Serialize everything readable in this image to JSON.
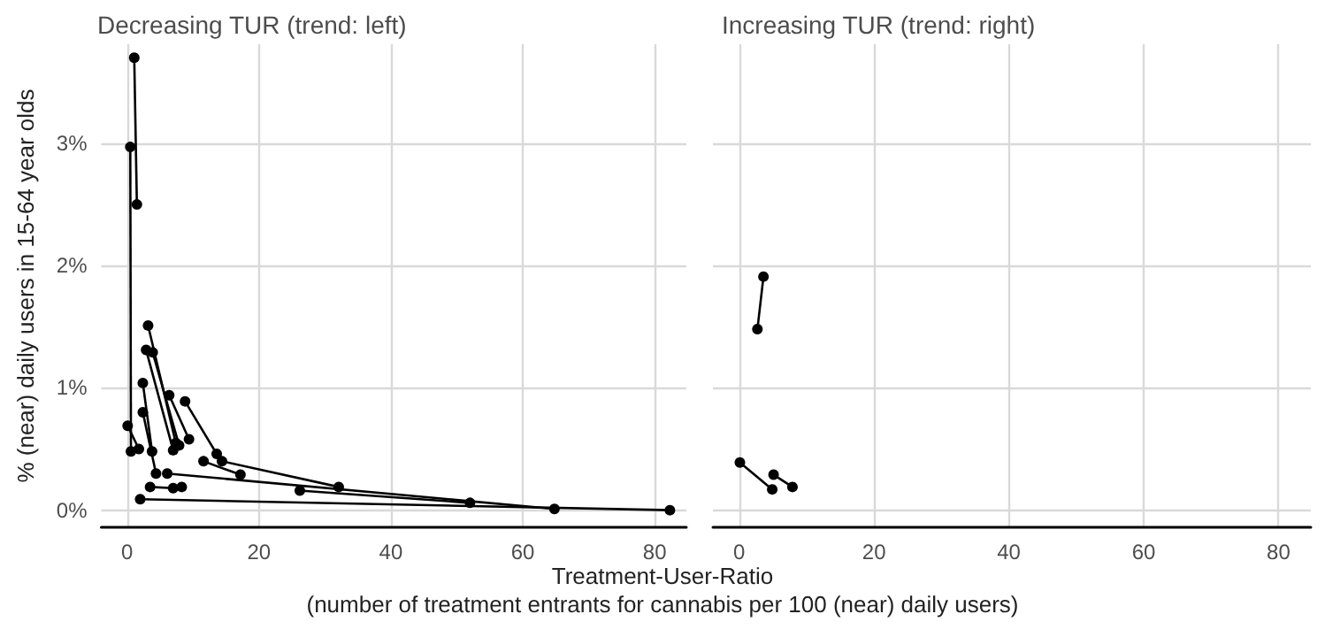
{
  "chart_data": [
    {
      "type": "line",
      "title": "Decreasing TUR (trend: left)",
      "xlabel": "Treatment-User-Ratio\n(number of treatment entrants for cannabis per 100 (near) daily users)",
      "ylabel": "% (near) daily users in 15-64 year olds",
      "color": "#000000",
      "marker": "circle",
      "grid": true,
      "xlim": [
        -3.9,
        84.8
      ],
      "xticks": [
        0,
        20,
        40,
        60,
        80
      ],
      "ylim": [
        -0.14,
        3.81
      ],
      "yticks": [
        {
          "value": 0,
          "label": "0%"
        },
        {
          "value": 1,
          "label": "1%"
        },
        {
          "value": 2,
          "label": "2%"
        },
        {
          "value": 3,
          "label": "3%"
        }
      ],
      "series": [
        {
          "x": [
            1.5,
            1.1
          ],
          "values": [
            2.5,
            3.7
          ]
        },
        {
          "x": [
            0.6,
            0.5
          ],
          "values": [
            0.48,
            2.97
          ]
        },
        {
          "x": [
            7.4,
            3.2
          ],
          "values": [
            0.55,
            1.51
          ]
        },
        {
          "x": [
            7.0,
            2.9
          ],
          "values": [
            0.49,
            1.31
          ]
        },
        {
          "x": [
            7.9,
            3.9
          ],
          "values": [
            0.53,
            1.29
          ]
        },
        {
          "x": [
            13.6,
            8.8
          ],
          "values": [
            0.46,
            0.89
          ]
        },
        {
          "x": [
            9.4,
            6.4
          ],
          "values": [
            0.58,
            0.94
          ]
        },
        {
          "x": [
            3.8,
            2.4
          ],
          "values": [
            0.48,
            1.04
          ]
        },
        {
          "x": [
            4.4,
            2.4
          ],
          "values": [
            0.3,
            0.8
          ]
        },
        {
          "x": [
            1.8,
            0.1
          ],
          "values": [
            0.5,
            0.69
          ]
        },
        {
          "x": [
            17.2,
            11.6
          ],
          "values": [
            0.29,
            0.4
          ]
        },
        {
          "x": [
            32.1,
            14.4
          ],
          "values": [
            0.19,
            0.4
          ]
        },
        {
          "x": [
            52.0,
            26.2
          ],
          "values": [
            0.06,
            0.16
          ]
        },
        {
          "x": [
            64.8,
            6.1
          ],
          "values": [
            0.01,
            0.3
          ]
        },
        {
          "x": [
            82.3,
            2.0
          ],
          "values": [
            0.0,
            0.09
          ]
        },
        {
          "x": [
            8.3,
            7.0,
            3.5
          ],
          "values": [
            0.19,
            0.18,
            0.19
          ]
        }
      ]
    },
    {
      "type": "line",
      "title": "Increasing TUR (trend: right)",
      "color": "#000000",
      "marker": "circle",
      "grid": true,
      "tick_labels": "x",
      "xlim": [
        -3.9,
        84.8
      ],
      "xticks": [
        0,
        20,
        40,
        60,
        80
      ],
      "ylim": [
        -0.14,
        3.81
      ],
      "yticks": [
        0,
        1,
        2,
        3
      ],
      "series": [
        {
          "x": [
            2.7,
            3.6
          ],
          "values": [
            1.48,
            1.91
          ]
        },
        {
          "x": [
            0.1,
            4.9
          ],
          "values": [
            0.39,
            0.17
          ]
        },
        {
          "x": [
            5.1,
            7.9
          ],
          "values": [
            0.29,
            0.19
          ]
        }
      ]
    }
  ]
}
